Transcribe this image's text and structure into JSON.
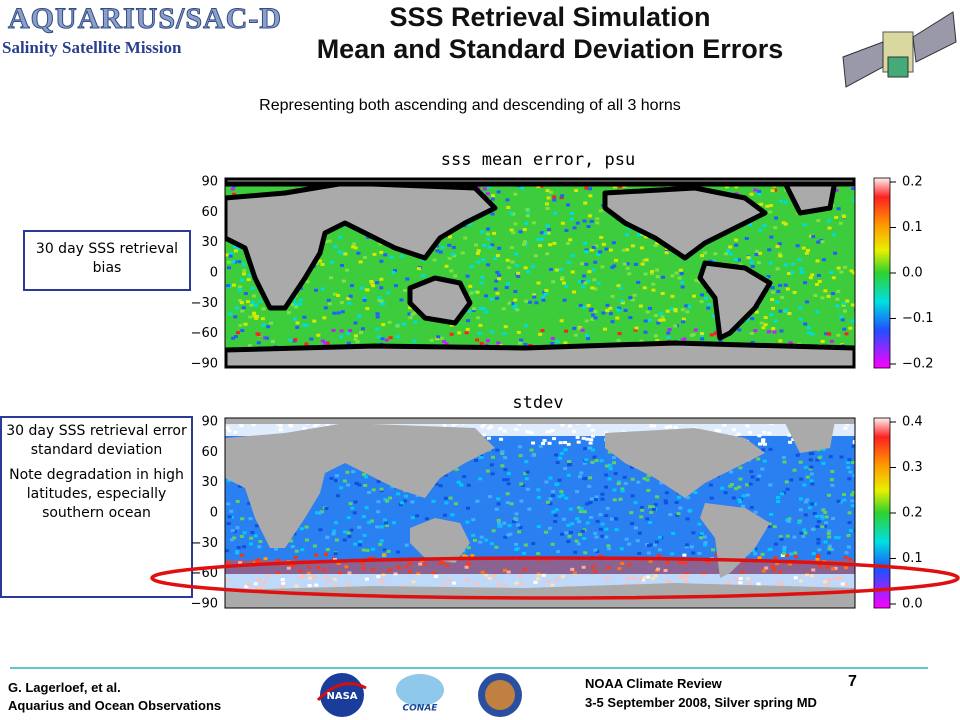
{
  "header": {
    "logo": "AQUARIUS/SAC-D",
    "tagline": "Salinity Satellite Mission",
    "title": [
      "SSS Retrieval Simulation",
      "Mean and Standard Deviation Errors"
    ],
    "subtitle": "Representing both ascending and descending of all 3 horns"
  },
  "maps": [
    {
      "title": "sss mean error, psu",
      "lat_labels": [
        "90",
        "60",
        "30",
        "0",
        "−30",
        "−60",
        "−90"
      ],
      "colorbar_labels": [
        "0.2",
        "0.1",
        "0.0",
        "−0.1",
        "−0.2"
      ],
      "note": [
        "30 day SSS retrieval bias"
      ]
    },
    {
      "title": "stdev",
      "lat_labels": [
        "90",
        "60",
        "30",
        "0",
        "−30",
        "−60",
        "−90"
      ],
      "colorbar_labels": [
        "0.4",
        "0.3",
        "0.2",
        "0.1",
        "0.0"
      ],
      "note": [
        "30 day SSS retrieval error standard deviation",
        "Note degradation in high latitudes, especially southern ocean"
      ]
    }
  ],
  "logos": [
    "NASA",
    "CONAE"
  ],
  "footer": {
    "author": "G. Lagerloef, et al.",
    "affiliation": "Aquarius and Ocean Observations",
    "event": "NOAA Climate Review",
    "page": "7",
    "date": "3-5 September 2008, Silver spring MD"
  }
}
